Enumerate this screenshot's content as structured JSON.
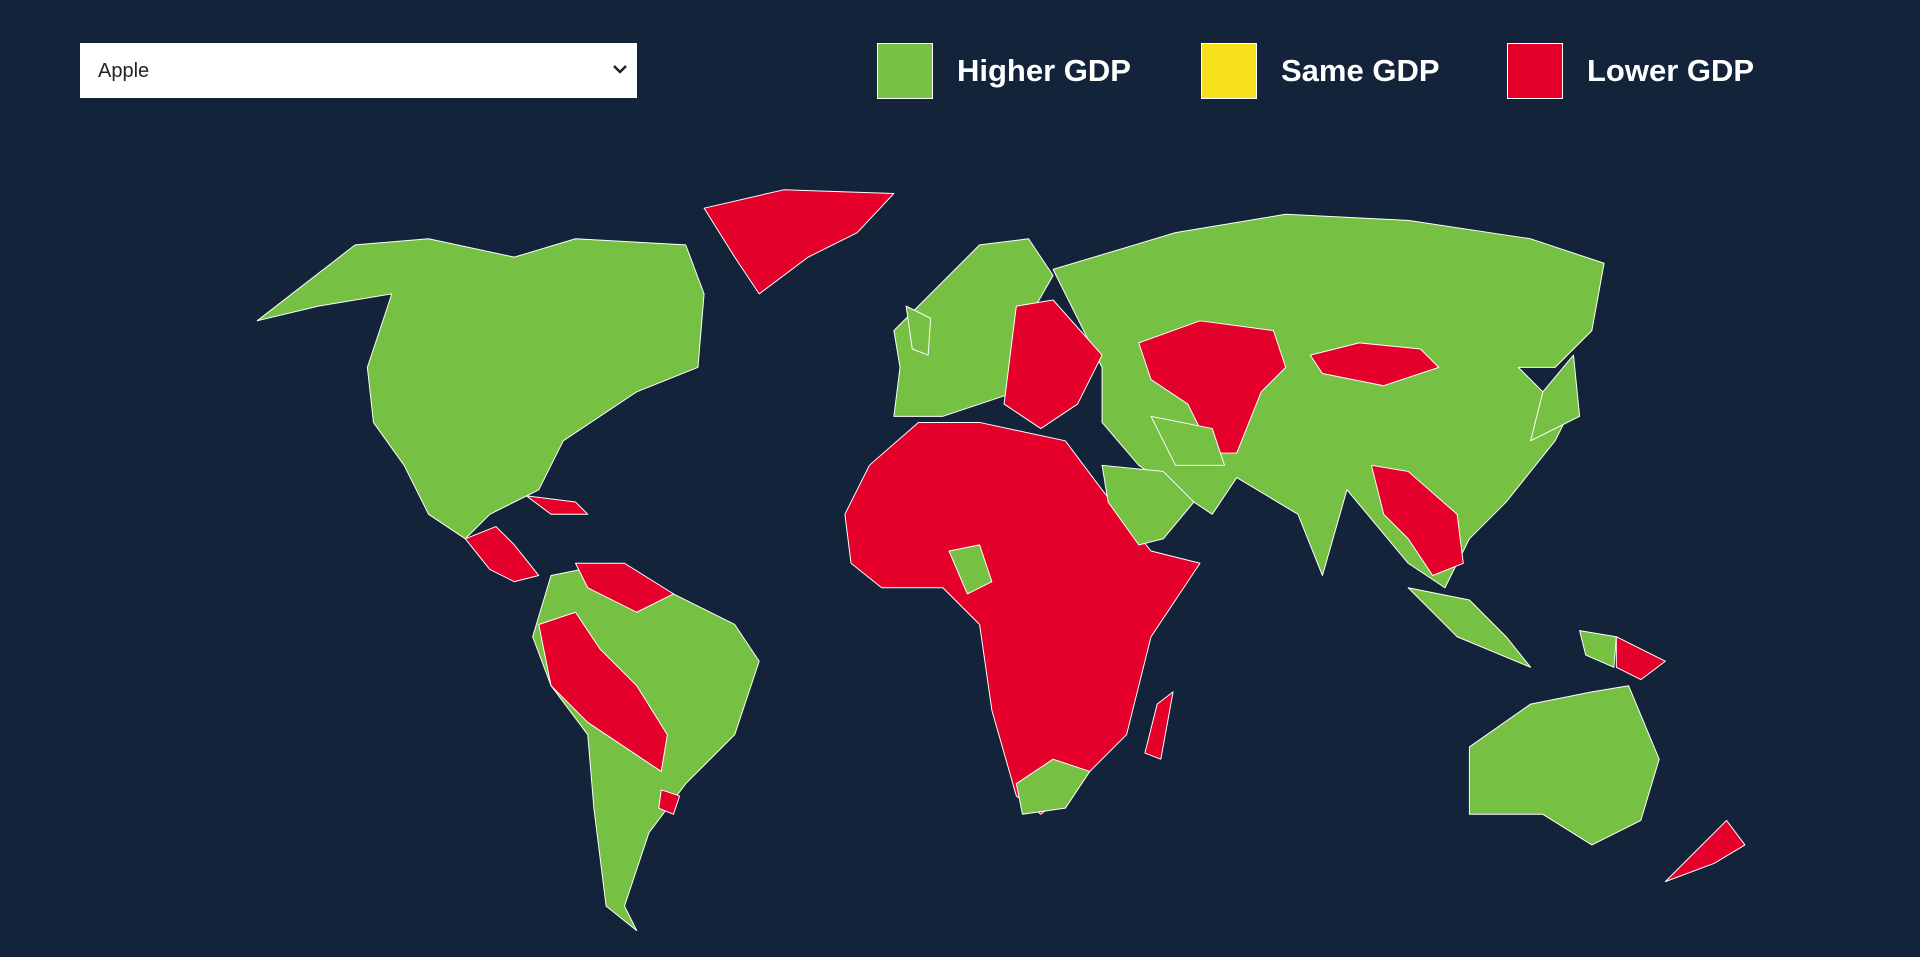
{
  "dropdown": {
    "selected": "Apple"
  },
  "legend": [
    {
      "label": "Higher GDP",
      "color": "#76c043"
    },
    {
      "label": "Same GDP",
      "color": "#f7e01c"
    },
    {
      "label": "Lower GDP",
      "color": "#e4002b"
    }
  ],
  "background": "#12233a"
}
